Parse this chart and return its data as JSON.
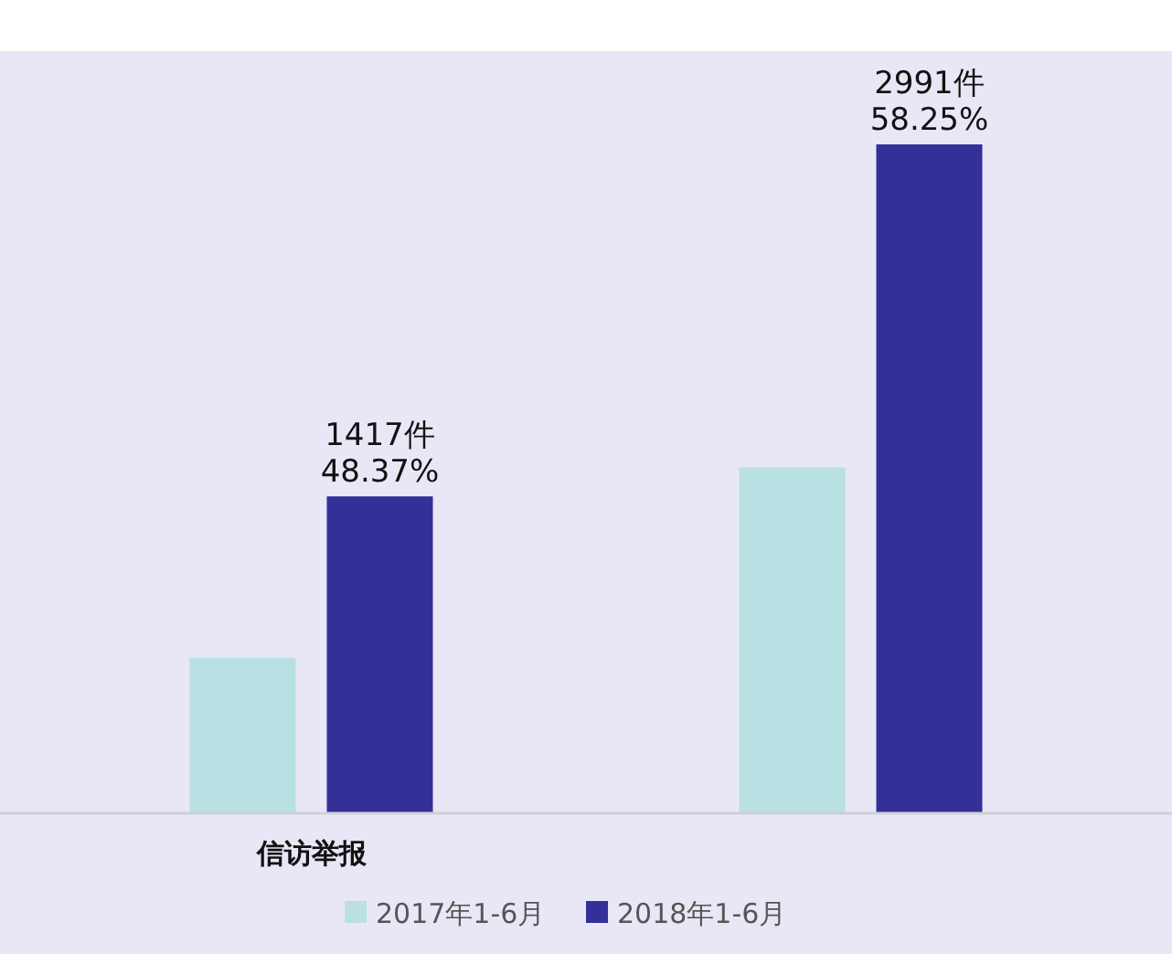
{
  "chart_data": {
    "type": "bar",
    "categories": [
      "信访举报",
      null
    ],
    "series": [
      {
        "name": "2017年1-6月",
        "color": "#b9e0e2",
        "values": [
          695,
          1546
        ]
      },
      {
        "name": "2018年1-6月",
        "color": "#33309a",
        "values": [
          1417,
          2991
        ],
        "value_labels": [
          "1417件\n48.37%",
          "2991件\n58.25%"
        ]
      }
    ],
    "legend": "bottom",
    "grid": false
  }
}
